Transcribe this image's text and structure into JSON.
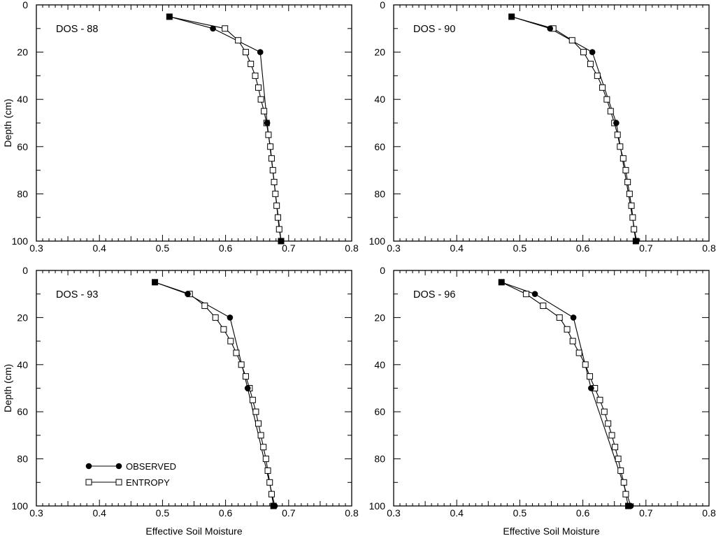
{
  "chart_data": [
    {
      "type": "line",
      "panel_label": "DOS - 88",
      "xlabel": "",
      "ylabel": "Depth (cm)",
      "xlim": [
        0.3,
        0.8
      ],
      "ylim": [
        100,
        0
      ],
      "xticks": [
        "0.3",
        "0.4",
        "0.5",
        "0.6",
        "0.7",
        "0.8"
      ],
      "yticks": [
        "0",
        "20",
        "40",
        "60",
        "80",
        "100"
      ],
      "series": [
        {
          "name": "OBSERVED",
          "marker": "filled-circle",
          "points": [
            [
              0.511,
              5
            ],
            [
              0.58,
              10
            ],
            [
              0.655,
              20
            ],
            [
              0.666,
              50
            ],
            [
              0.688,
              100
            ]
          ]
        },
        {
          "name": "ENTROPY",
          "marker": "open-square",
          "points": [
            [
              0.511,
              5
            ],
            [
              0.599,
              10
            ],
            [
              0.62,
              15
            ],
            [
              0.632,
              20
            ],
            [
              0.64,
              25
            ],
            [
              0.647,
              30
            ],
            [
              0.652,
              35
            ],
            [
              0.656,
              40
            ],
            [
              0.661,
              45
            ],
            [
              0.665,
              50
            ],
            [
              0.668,
              55
            ],
            [
              0.671,
              60
            ],
            [
              0.673,
              65
            ],
            [
              0.675,
              70
            ],
            [
              0.677,
              75
            ],
            [
              0.679,
              80
            ],
            [
              0.681,
              85
            ],
            [
              0.683,
              90
            ],
            [
              0.685,
              95
            ],
            [
              0.688,
              100
            ]
          ]
        }
      ]
    },
    {
      "type": "line",
      "panel_label": "DOS - 90",
      "xlabel": "",
      "ylabel": "",
      "xlim": [
        0.3,
        0.8
      ],
      "ylim": [
        100,
        0
      ],
      "xticks": [
        "0.3",
        "0.4",
        "0.5",
        "0.6",
        "0.7",
        "0.8"
      ],
      "yticks": [
        "0",
        "20",
        "40",
        "60",
        "80",
        "100"
      ],
      "series": [
        {
          "name": "OBSERVED",
          "marker": "filled-circle",
          "points": [
            [
              0.487,
              5
            ],
            [
              0.548,
              10
            ],
            [
              0.615,
              20
            ],
            [
              0.653,
              50
            ],
            [
              0.685,
              100
            ]
          ]
        },
        {
          "name": "ENTROPY",
          "marker": "open-square",
          "points": [
            [
              0.487,
              5
            ],
            [
              0.553,
              10
            ],
            [
              0.583,
              15
            ],
            [
              0.601,
              20
            ],
            [
              0.612,
              25
            ],
            [
              0.623,
              30
            ],
            [
              0.631,
              35
            ],
            [
              0.638,
              40
            ],
            [
              0.644,
              45
            ],
            [
              0.65,
              50
            ],
            [
              0.655,
              55
            ],
            [
              0.659,
              60
            ],
            [
              0.664,
              65
            ],
            [
              0.668,
              70
            ],
            [
              0.671,
              75
            ],
            [
              0.674,
              80
            ],
            [
              0.677,
              85
            ],
            [
              0.679,
              90
            ],
            [
              0.681,
              95
            ],
            [
              0.684,
              100
            ]
          ]
        }
      ]
    },
    {
      "type": "line",
      "panel_label": "DOS - 93",
      "xlabel": "Effective Soil Moisture",
      "ylabel": "Depth (cm)",
      "xlim": [
        0.3,
        0.8
      ],
      "ylim": [
        100,
        0
      ],
      "xticks": [
        "0.3",
        "0.4",
        "0.5",
        "0.6",
        "0.7",
        "0.8"
      ],
      "yticks": [
        "0",
        "20",
        "40",
        "60",
        "80",
        "100"
      ],
      "series": [
        {
          "name": "OBSERVED",
          "marker": "filled-circle",
          "points": [
            [
              0.488,
              5
            ],
            [
              0.54,
              10
            ],
            [
              0.607,
              20
            ],
            [
              0.635,
              50
            ],
            [
              0.678,
              100
            ]
          ]
        },
        {
          "name": "ENTROPY",
          "marker": "open-square",
          "points": [
            [
              0.488,
              5
            ],
            [
              0.543,
              10
            ],
            [
              0.567,
              15
            ],
            [
              0.584,
              20
            ],
            [
              0.597,
              25
            ],
            [
              0.608,
              30
            ],
            [
              0.617,
              35
            ],
            [
              0.625,
              40
            ],
            [
              0.632,
              45
            ],
            [
              0.638,
              50
            ],
            [
              0.643,
              55
            ],
            [
              0.648,
              60
            ],
            [
              0.652,
              65
            ],
            [
              0.656,
              70
            ],
            [
              0.66,
              75
            ],
            [
              0.664,
              80
            ],
            [
              0.667,
              85
            ],
            [
              0.67,
              90
            ],
            [
              0.673,
              95
            ],
            [
              0.676,
              100
            ]
          ]
        }
      ]
    },
    {
      "type": "line",
      "panel_label": "DOS - 96",
      "xlabel": "Effective Soil Moisture",
      "ylabel": "",
      "xlim": [
        0.3,
        0.8
      ],
      "ylim": [
        100,
        0
      ],
      "xticks": [
        "0.3",
        "0.4",
        "0.5",
        "0.6",
        "0.7",
        "0.8"
      ],
      "yticks": [
        "0",
        "20",
        "40",
        "60",
        "80",
        "100"
      ],
      "series": [
        {
          "name": "OBSERVED",
          "marker": "filled-circle",
          "points": [
            [
              0.471,
              5
            ],
            [
              0.524,
              10
            ],
            [
              0.585,
              20
            ],
            [
              0.613,
              50
            ],
            [
              0.676,
              100
            ]
          ]
        },
        {
          "name": "ENTROPY",
          "marker": "open-square",
          "points": [
            [
              0.471,
              5
            ],
            [
              0.51,
              10
            ],
            [
              0.537,
              15
            ],
            [
              0.563,
              20
            ],
            [
              0.575,
              25
            ],
            [
              0.584,
              30
            ],
            [
              0.594,
              35
            ],
            [
              0.604,
              40
            ],
            [
              0.611,
              45
            ],
            [
              0.619,
              50
            ],
            [
              0.627,
              55
            ],
            [
              0.634,
              60
            ],
            [
              0.64,
              65
            ],
            [
              0.646,
              70
            ],
            [
              0.651,
              75
            ],
            [
              0.656,
              80
            ],
            [
              0.66,
              85
            ],
            [
              0.665,
              90
            ],
            [
              0.668,
              95
            ],
            [
              0.672,
              100
            ]
          ]
        }
      ]
    }
  ],
  "legend": {
    "placement": "bottom-left of DOS - 93 panel",
    "entries": [
      {
        "label": "OBSERVED",
        "marker": "filled-circle"
      },
      {
        "label": "ENTROPY",
        "marker": "open-square"
      }
    ]
  }
}
